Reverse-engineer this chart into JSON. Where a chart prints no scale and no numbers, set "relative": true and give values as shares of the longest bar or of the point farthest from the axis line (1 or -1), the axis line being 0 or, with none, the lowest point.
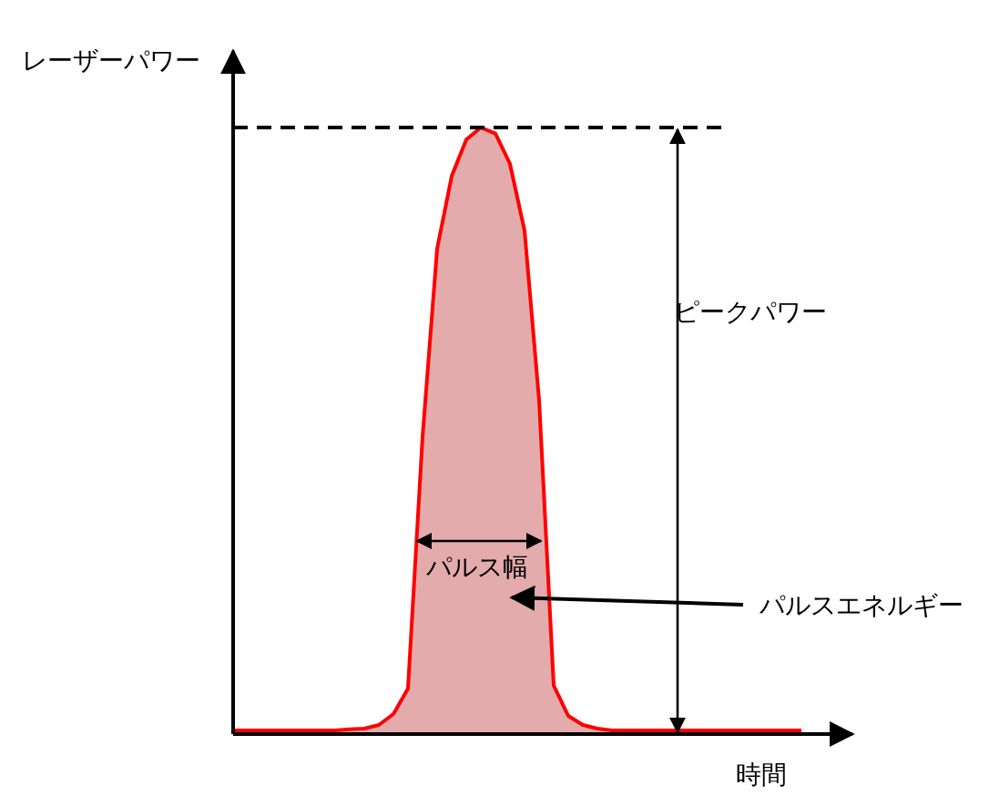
{
  "chart_data": {
    "type": "area",
    "relative": true,
    "xlabel": "時間",
    "ylabel": "レーザーパワー",
    "categories": [
      null,
      null,
      null,
      null,
      null,
      null,
      null,
      null,
      null,
      null,
      null,
      null,
      null,
      null,
      null,
      null,
      null,
      null,
      null,
      null,
      null,
      null,
      null,
      null,
      null,
      null,
      null,
      null,
      null,
      null,
      null,
      null,
      null,
      null,
      null,
      null,
      null,
      null,
      null,
      null
    ],
    "values": [
      0.006,
      0.006,
      0.006,
      0.006,
      0.006,
      0.006,
      0.006,
      0.006,
      0.008,
      0.009,
      0.015,
      0.033,
      0.075,
      0.49,
      0.8,
      0.92,
      0.98,
      1,
      0.99,
      0.94,
      0.83,
      0.55,
      0.08,
      0.03,
      0.015,
      0.009,
      0.006,
      0.006,
      0.006,
      0.006,
      0.006,
      0.006,
      0.006,
      0.006,
      0.006,
      0.006,
      0.006,
      0.006,
      0.006,
      0.006
    ],
    "color": "#ff0000",
    "ref_lines": [
      {
        "axis": "y",
        "value": 1,
        "line_style": "dashed",
        "color": "#000000"
      }
    ],
    "annotations": [
      "ピークパワー",
      "パルス幅",
      "パルスエネルギー"
    ]
  }
}
